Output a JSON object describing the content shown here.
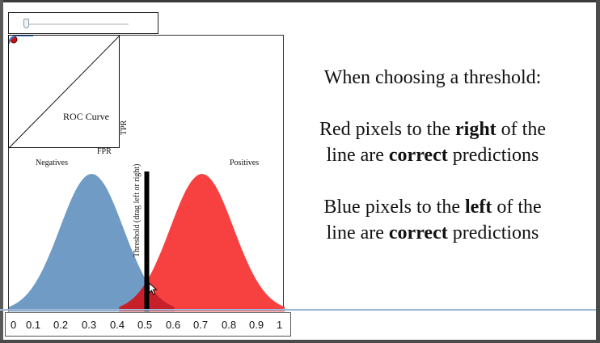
{
  "slider": {
    "value": 0.02
  },
  "roc": {
    "title": "ROC Curve",
    "xlabel": "FPR",
    "ylabel": "TPR"
  },
  "distributions": {
    "negatives_label": "Negatives",
    "positives_label": "Positives",
    "negatives_mean": 0.3,
    "positives_mean": 0.7,
    "negatives_color": "#6f9bc4",
    "positives_color": "#f74040"
  },
  "threshold": {
    "label": "Threshold (drag left or right)",
    "value": 0.5
  },
  "info": {
    "heading": "When choosing a threshold:",
    "line1_pre": "Red pixels to the ",
    "line1_bold": "right",
    "line1_post": " of the",
    "line2_pre": "line are ",
    "line2_bold": "correct",
    "line2_post": " predictions",
    "line3_pre": "Blue pixels to the ",
    "line3_bold": "left",
    "line3_post": " of the",
    "line4_pre": "line are ",
    "line4_bold": "correct",
    "line4_post": " predictions"
  },
  "scale": {
    "ticks": [
      "0",
      "0.1",
      "0.2",
      "0.3",
      "0.4",
      "0.5",
      "0.6",
      "0.7",
      "0.8",
      "0.9",
      "1"
    ]
  }
}
